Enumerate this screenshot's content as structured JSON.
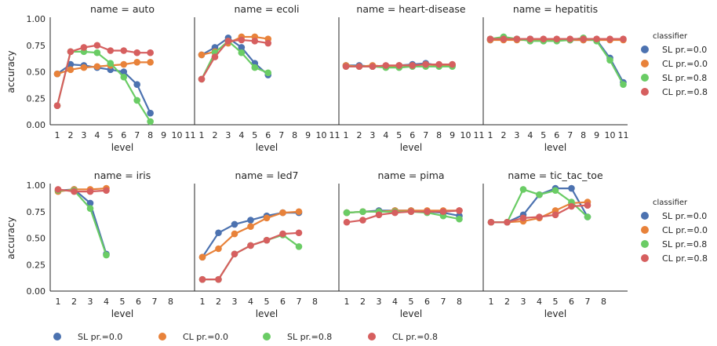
{
  "colors": {
    "SL pr.=0.0": "#4C72B0",
    "CL pr.=0.0": "#E8823A",
    "SL pr.=0.8": "#6ACC65",
    "CL pr.=0.8": "#D65F5F",
    "axis": "#262626"
  },
  "chart_data": {
    "type": "line",
    "legend_title": "classifier",
    "legend_entries": [
      "SL pr.=0.0",
      "CL pr.=0.0",
      "SL pr.=0.8",
      "CL pr.=0.8"
    ],
    "legend_placement": "right of each row; also bottom of figure",
    "grid": false,
    "ylabel": "accuracy",
    "xlabel": "level",
    "ylim": [
      0.0,
      1.0
    ],
    "yticks": [
      "0.00",
      "0.25",
      "0.50",
      "0.75",
      "1.00"
    ],
    "rows": [
      {
        "xticks": [
          "1",
          "2",
          "3",
          "4",
          "5",
          "6",
          "7",
          "8",
          "9",
          "10",
          "11"
        ],
        "panels": [
          {
            "title": "name = auto",
            "series": [
              {
                "name": "SL pr.=0.0",
                "x": [
                  1,
                  2,
                  3,
                  4,
                  5,
                  6,
                  7,
                  8
                ],
                "y": [
                  0.48,
                  0.57,
                  0.56,
                  0.54,
                  0.52,
                  0.5,
                  0.38,
                  0.11
                ]
              },
              {
                "name": "CL pr.=0.0",
                "x": [
                  1,
                  2,
                  3,
                  4,
                  5,
                  6,
                  7,
                  8
                ],
                "y": [
                  0.48,
                  0.52,
                  0.54,
                  0.55,
                  0.56,
                  0.57,
                  0.59,
                  0.59
                ]
              },
              {
                "name": "SL pr.=0.8",
                "x": [
                  1,
                  2,
                  3,
                  4,
                  5,
                  6,
                  7,
                  8
                ],
                "y": [
                  0.18,
                  0.69,
                  0.69,
                  0.68,
                  0.58,
                  0.45,
                  0.23,
                  0.03
                ]
              },
              {
                "name": "CL pr.=0.8",
                "x": [
                  1,
                  2,
                  3,
                  4,
                  5,
                  6,
                  7,
                  8
                ],
                "y": [
                  0.18,
                  0.69,
                  0.73,
                  0.75,
                  0.7,
                  0.7,
                  0.68,
                  0.68
                ]
              }
            ]
          },
          {
            "title": "name = ecoli",
            "series": [
              {
                "name": "SL pr.=0.0",
                "x": [
                  1,
                  2,
                  3,
                  4,
                  5,
                  6
                ],
                "y": [
                  0.66,
                  0.73,
                  0.82,
                  0.73,
                  0.58,
                  0.47
                ]
              },
              {
                "name": "CL pr.=0.0",
                "x": [
                  1,
                  2,
                  3,
                  4,
                  5,
                  6
                ],
                "y": [
                  0.66,
                  0.69,
                  0.77,
                  0.83,
                  0.83,
                  0.81
                ]
              },
              {
                "name": "SL pr.=0.8",
                "x": [
                  1,
                  2,
                  3,
                  4,
                  5,
                  6
                ],
                "y": [
                  0.43,
                  0.68,
                  0.79,
                  0.68,
                  0.54,
                  0.49
                ]
              },
              {
                "name": "CL pr.=0.8",
                "x": [
                  1,
                  2,
                  3,
                  4,
                  5,
                  6
                ],
                "y": [
                  0.43,
                  0.64,
                  0.79,
                  0.8,
                  0.79,
                  0.77
                ]
              }
            ]
          },
          {
            "title": "name = heart-disease",
            "series": [
              {
                "name": "SL pr.=0.0",
                "x": [
                  1,
                  2,
                  3,
                  4,
                  5,
                  6,
                  7,
                  8,
                  9
                ],
                "y": [
                  0.56,
                  0.56,
                  0.55,
                  0.55,
                  0.56,
                  0.57,
                  0.58,
                  0.56,
                  0.56
                ]
              },
              {
                "name": "CL pr.=0.0",
                "x": [
                  1,
                  2,
                  3,
                  4,
                  5,
                  6,
                  7,
                  8,
                  9
                ],
                "y": [
                  0.56,
                  0.55,
                  0.56,
                  0.55,
                  0.56,
                  0.56,
                  0.57,
                  0.56,
                  0.56
                ]
              },
              {
                "name": "SL pr.=0.8",
                "x": [
                  1,
                  2,
                  3,
                  4,
                  5,
                  6,
                  7,
                  8,
                  9
                ],
                "y": [
                  0.55,
                  0.55,
                  0.55,
                  0.54,
                  0.54,
                  0.55,
                  0.55,
                  0.55,
                  0.55
                ]
              },
              {
                "name": "CL pr.=0.8",
                "x": [
                  1,
                  2,
                  3,
                  4,
                  5,
                  6,
                  7,
                  8,
                  9
                ],
                "y": [
                  0.55,
                  0.55,
                  0.55,
                  0.56,
                  0.56,
                  0.56,
                  0.57,
                  0.57,
                  0.57
                ]
              }
            ]
          },
          {
            "title": "name = hepatitis",
            "series": [
              {
                "name": "SL pr.=0.0",
                "x": [
                  1,
                  2,
                  3,
                  4,
                  5,
                  6,
                  7,
                  8,
                  9,
                  10,
                  11
                ],
                "y": [
                  0.8,
                  0.82,
                  0.81,
                  0.81,
                  0.8,
                  0.8,
                  0.8,
                  0.8,
                  0.8,
                  0.63,
                  0.4
                ]
              },
              {
                "name": "CL pr.=0.0",
                "x": [
                  1,
                  2,
                  3,
                  4,
                  5,
                  6,
                  7,
                  8,
                  9,
                  10,
                  11
                ],
                "y": [
                  0.8,
                  0.8,
                  0.8,
                  0.8,
                  0.8,
                  0.8,
                  0.8,
                  0.8,
                  0.8,
                  0.8,
                  0.8
                ]
              },
              {
                "name": "SL pr.=0.8",
                "x": [
                  1,
                  2,
                  3,
                  4,
                  5,
                  6,
                  7,
                  8,
                  9,
                  10,
                  11
                ],
                "y": [
                  0.81,
                  0.83,
                  0.81,
                  0.79,
                  0.79,
                  0.79,
                  0.8,
                  0.82,
                  0.79,
                  0.61,
                  0.38
                ]
              },
              {
                "name": "CL pr.=0.8",
                "x": [
                  1,
                  2,
                  3,
                  4,
                  5,
                  6,
                  7,
                  8,
                  9,
                  10,
                  11
                ],
                "y": [
                  0.81,
                  0.81,
                  0.81,
                  0.81,
                  0.81,
                  0.81,
                  0.81,
                  0.81,
                  0.81,
                  0.81,
                  0.81
                ]
              }
            ]
          }
        ]
      },
      {
        "xticks": [
          "1",
          "2",
          "3",
          "4",
          "5",
          "6",
          "7",
          "8"
        ],
        "panels": [
          {
            "title": "name = iris",
            "series": [
              {
                "name": "SL pr.=0.0",
                "x": [
                  1,
                  2,
                  3,
                  4
                ],
                "y": [
                  0.95,
                  0.96,
                  0.83,
                  0.35
                ]
              },
              {
                "name": "CL pr.=0.0",
                "x": [
                  1,
                  2,
                  3,
                  4
                ],
                "y": [
                  0.94,
                  0.96,
                  0.96,
                  0.97
                ]
              },
              {
                "name": "SL pr.=0.8",
                "x": [
                  1,
                  2,
                  3,
                  4
                ],
                "y": [
                  0.95,
                  0.95,
                  0.78,
                  0.34
                ]
              },
              {
                "name": "CL pr.=0.8",
                "x": [
                  1,
                  2,
                  3,
                  4
                ],
                "y": [
                  0.96,
                  0.94,
                  0.94,
                  0.95
                ]
              }
            ]
          },
          {
            "title": "name = led7",
            "series": [
              {
                "name": "SL pr.=0.0",
                "x": [
                  1,
                  2,
                  3,
                  4,
                  5,
                  6,
                  7
                ],
                "y": [
                  0.32,
                  0.55,
                  0.63,
                  0.67,
                  0.71,
                  0.74,
                  0.74
                ]
              },
              {
                "name": "CL pr.=0.0",
                "x": [
                  1,
                  2,
                  3,
                  4,
                  5,
                  6,
                  7
                ],
                "y": [
                  0.32,
                  0.4,
                  0.54,
                  0.61,
                  0.69,
                  0.74,
                  0.75
                ]
              },
              {
                "name": "SL pr.=0.8",
                "x": [
                  1,
                  2,
                  3,
                  4,
                  5,
                  6,
                  7
                ],
                "y": [
                  0.11,
                  0.11,
                  0.35,
                  0.43,
                  0.48,
                  0.53,
                  0.42
                ]
              },
              {
                "name": "CL pr.=0.8",
                "x": [
                  1,
                  2,
                  3,
                  4,
                  5,
                  6,
                  7
                ],
                "y": [
                  0.11,
                  0.11,
                  0.35,
                  0.43,
                  0.48,
                  0.54,
                  0.55
                ]
              }
            ]
          },
          {
            "title": "name = pima",
            "series": [
              {
                "name": "SL pr.=0.0",
                "x": [
                  1,
                  2,
                  3,
                  4,
                  5,
                  6,
                  7,
                  8
                ],
                "y": [
                  0.74,
                  0.75,
                  0.76,
                  0.76,
                  0.76,
                  0.75,
                  0.74,
                  0.71
                ]
              },
              {
                "name": "CL pr.=0.0",
                "x": [
                  1,
                  2,
                  3,
                  4,
                  5,
                  6,
                  7,
                  8
                ],
                "y": [
                  0.74,
                  0.75,
                  0.75,
                  0.76,
                  0.76,
                  0.76,
                  0.76,
                  0.76
                ]
              },
              {
                "name": "SL pr.=0.8",
                "x": [
                  1,
                  2,
                  3,
                  4,
                  5,
                  6,
                  7,
                  8
                ],
                "y": [
                  0.74,
                  0.75,
                  0.75,
                  0.75,
                  0.75,
                  0.74,
                  0.71,
                  0.68
                ]
              },
              {
                "name": "CL pr.=0.8",
                "x": [
                  1,
                  2,
                  3,
                  4,
                  5,
                  6,
                  7,
                  8
                ],
                "y": [
                  0.65,
                  0.67,
                  0.72,
                  0.74,
                  0.75,
                  0.75,
                  0.75,
                  0.76
                ]
              }
            ]
          },
          {
            "title": "name = tic_tac_toe",
            "series": [
              {
                "name": "SL pr.=0.0",
                "x": [
                  1,
                  2,
                  3,
                  4,
                  5,
                  6,
                  7
                ],
                "y": [
                  0.65,
                  0.65,
                  0.72,
                  0.91,
                  0.97,
                  0.97,
                  0.7
                ]
              },
              {
                "name": "CL pr.=0.0",
                "x": [
                  1,
                  2,
                  3,
                  4,
                  5,
                  6,
                  7
                ],
                "y": [
                  0.65,
                  0.65,
                  0.66,
                  0.69,
                  0.76,
                  0.83,
                  0.84
                ]
              },
              {
                "name": "SL pr.=0.8",
                "x": [
                  1,
                  2,
                  3,
                  4,
                  5,
                  6,
                  7
                ],
                "y": [
                  0.65,
                  0.65,
                  0.96,
                  0.91,
                  0.95,
                  0.84,
                  0.7
                ]
              },
              {
                "name": "CL pr.=0.8",
                "x": [
                  1,
                  2,
                  3,
                  4,
                  5,
                  6,
                  7
                ],
                "y": [
                  0.65,
                  0.65,
                  0.69,
                  0.7,
                  0.72,
                  0.8,
                  0.81
                ]
              }
            ]
          }
        ]
      }
    ]
  }
}
